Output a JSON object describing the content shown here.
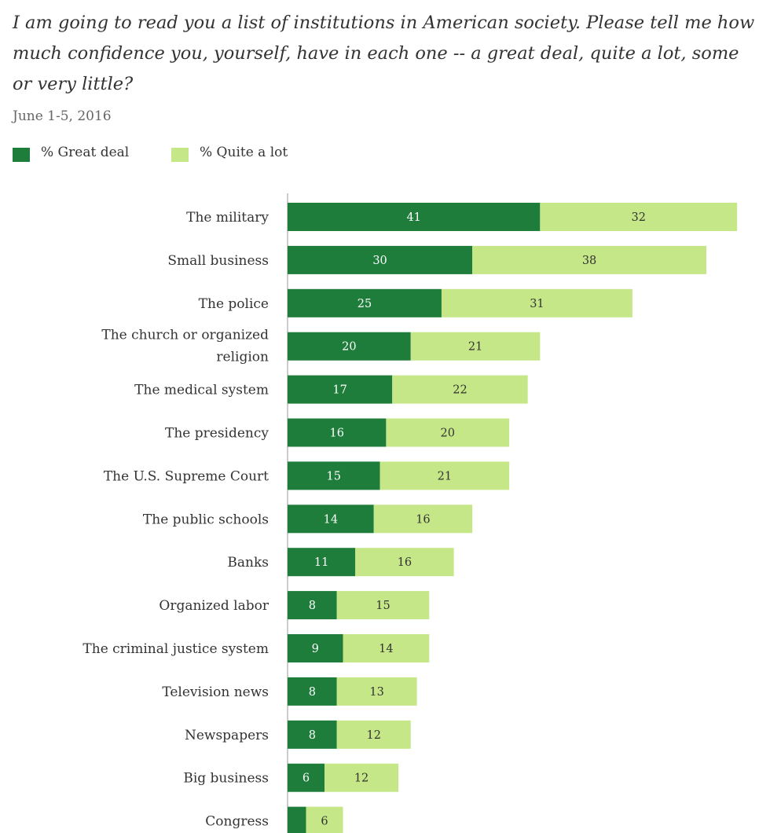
{
  "question": "I am going to read you a list of institutions in American society. Please tell me how much confidence you, yourself, have in each one -- a great deal, quite a lot, some or very little?",
  "date": "June 1-5, 2016",
  "colors": {
    "great_deal": "#1e7d3a",
    "quite_a_lot": "#c5e787",
    "axis": "#bbbbbb"
  },
  "chart_data": {
    "type": "bar",
    "orientation": "horizontal",
    "stacked": true,
    "legend_position": "top-left",
    "grid": false,
    "xlim": [
      0,
      74
    ],
    "categories": [
      [
        "The military"
      ],
      [
        "Small business"
      ],
      [
        "The police"
      ],
      [
        "The church or organized",
        "religion"
      ],
      [
        "The medical system"
      ],
      [
        "The presidency"
      ],
      [
        "The U.S. Supreme Court"
      ],
      [
        "The public schools"
      ],
      [
        "Banks"
      ],
      [
        "Organized labor"
      ],
      [
        "The criminal justice system"
      ],
      [
        "Television news"
      ],
      [
        "Newspapers"
      ],
      [
        "Big business"
      ],
      [
        "Congress"
      ]
    ],
    "series": [
      {
        "name": "% Great deal",
        "values": [
          41,
          30,
          25,
          20,
          17,
          16,
          15,
          14,
          11,
          8,
          9,
          8,
          8,
          6,
          3
        ],
        "labels": [
          "41",
          "30",
          "25",
          "20",
          "17",
          "16",
          "15",
          "14",
          "11",
          "8",
          "9",
          "8",
          "8",
          "6",
          ""
        ]
      },
      {
        "name": "% Quite a lot",
        "values": [
          32,
          38,
          31,
          21,
          22,
          20,
          21,
          16,
          16,
          15,
          14,
          13,
          12,
          12,
          6
        ],
        "labels": [
          "32",
          "38",
          "31",
          "21",
          "22",
          "20",
          "21",
          "16",
          "16",
          "15",
          "14",
          "13",
          "12",
          "12",
          "6"
        ]
      }
    ]
  }
}
